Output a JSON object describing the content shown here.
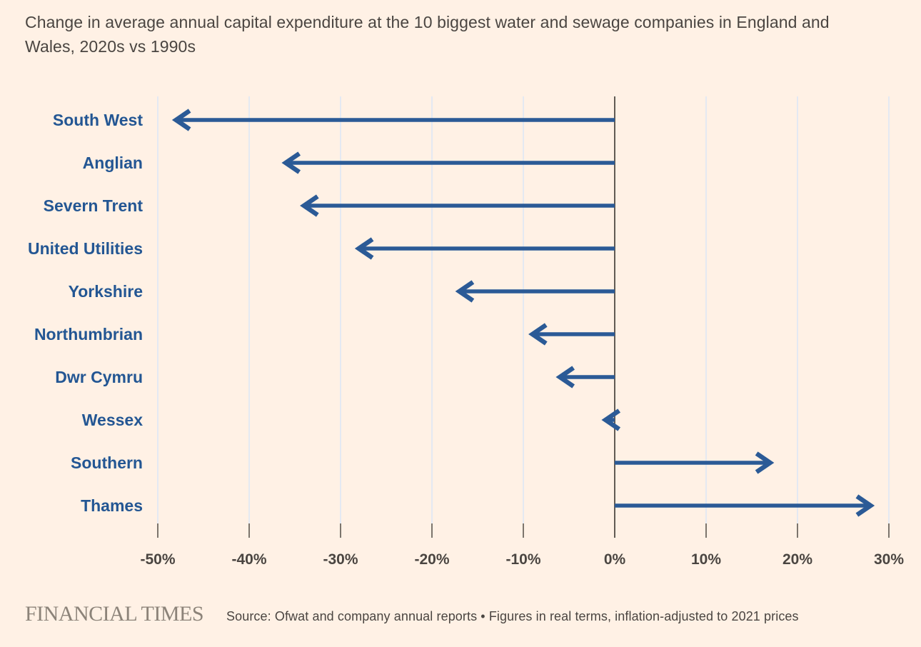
{
  "title": "Change in average annual capital expenditure at the 10 biggest water and sewage companies in England and Wales, 2020s vs 1990s",
  "footer": {
    "brand": "FINANCIAL TIMES",
    "source": "Source: Ofwat and company annual reports • Figures in real terms, inflation-adjusted to 2021 prices"
  },
  "colors": {
    "background": "#fff1e5",
    "arrow": "#2b5a96",
    "company_label": "#235693",
    "title_text": "#4a4541",
    "axis_text": "#4a4541",
    "zero_line": "#615b54",
    "tick": "#7c756d",
    "gridline": "#e4e9f2",
    "brand_gray": "#8c8379"
  },
  "chart_data": {
    "type": "bar",
    "subtype": "horizontal-arrow-bars",
    "title": "Change in average annual capital expenditure at the 10 biggest water and sewage companies in England and Wales, 2020s vs 1990s",
    "categories": [
      "South West",
      "Anglian",
      "Severn Trent",
      "United Utilities",
      "Yorkshire",
      "Northumbrian",
      "Dwr Cymru",
      "Wessex",
      "Southern",
      "Thames"
    ],
    "values": [
      -48,
      -36,
      -34,
      -28,
      -17,
      -9,
      -6,
      -1,
      17,
      28
    ],
    "unit": "%",
    "xlabel": "",
    "ylabel": "",
    "xlim": [
      -51,
      31
    ],
    "x_ticks": [
      -50,
      -40,
      -30,
      -20,
      -10,
      0,
      10,
      20,
      30
    ],
    "x_tick_labels": [
      "-50%",
      "-40%",
      "-30%",
      "-20%",
      "-10%",
      "0%",
      "10%",
      "20%",
      "30%"
    ],
    "grid": "vertical-gridlines-on",
    "legend": "none",
    "baseline": 0
  }
}
